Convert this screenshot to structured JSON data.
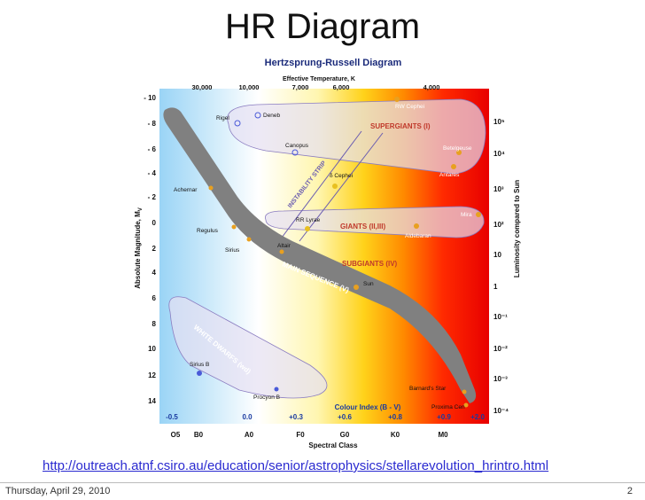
{
  "slide": {
    "title": "HR Diagram",
    "link": "http://outreach.atnf.csiro.au/education/senior/astrophysics/stellarevolution_hrintro.html",
    "footer_date": "Thursday, April 29, 2010",
    "page_number": "2"
  },
  "diagram": {
    "title": "Hertzsprung-Russell Diagram",
    "top_axis_label": "Effective Temperature, K",
    "top_ticks": [
      "30,000",
      "10,000",
      "7,000",
      "6,000",
      "4,000"
    ],
    "left_axis_label": "Absolute Magnitude, M",
    "left_axis_sub": "V",
    "left_ticks": [
      "- 10",
      "- 8",
      "- 6",
      "- 4",
      "- 2",
      "0",
      "2",
      "4",
      "6",
      "8",
      "10",
      "12",
      "14"
    ],
    "right_axis_label": "Luminosity compared to Sun",
    "right_ticks": [
      "10⁵",
      "10⁴",
      "10³",
      "10²",
      "10",
      "1",
      "10⁻¹",
      "10⁻²",
      "10⁻³",
      "10⁻⁴"
    ],
    "bottom_axis_label": "Spectral Class",
    "spectral_classes": [
      "O5",
      "B0",
      "A0",
      "F0",
      "G0",
      "K0",
      "M0"
    ],
    "colour_index_label": "Colour Index (B - V)",
    "colour_index_ticks": [
      "-0.5",
      "0.0",
      "+0.3",
      "+0.6",
      "+0.8",
      "+0.9",
      "+2.0"
    ],
    "regions": {
      "supergiants": "SUPERGIANTS (I)",
      "giants": "GIANTS (II,III)",
      "subgiants": "SUBGIANTS (IV)",
      "main_sequence": "MAIN SEQUENCE (V)",
      "white_dwarfs": "WHITE DWARFS (wd)",
      "instability_strip": "INSTABILITY STRIP"
    },
    "stars": {
      "rw_cephei": "RW Cephei",
      "rigel": "Rigel",
      "deneb": "Deneb",
      "canopus": "Canopus",
      "betelgeuse": "Betelgeuse",
      "antares": "Antares",
      "achernar": "Achernar",
      "delta_cephei": "δ Cephei",
      "mira": "Mira",
      "rr_lyrae": "RR Lyrae",
      "aldebaran": "Aldebaran",
      "regulus": "Regulus",
      "sirius": "Sirius",
      "altair": "Altair",
      "sun": "Sun",
      "sirius_b": "Sirius B",
      "procyon_b": "Procyon B",
      "barnards_star": "Barnard's Star",
      "proxima_cen": "Proxima Cen"
    }
  },
  "colors": {
    "link": "#2a2ad0",
    "region_label": "#c0392b",
    "colour_index": "#1a3aa0",
    "star_hot": "#4a5ad8",
    "star_warm": "#e8a020"
  }
}
